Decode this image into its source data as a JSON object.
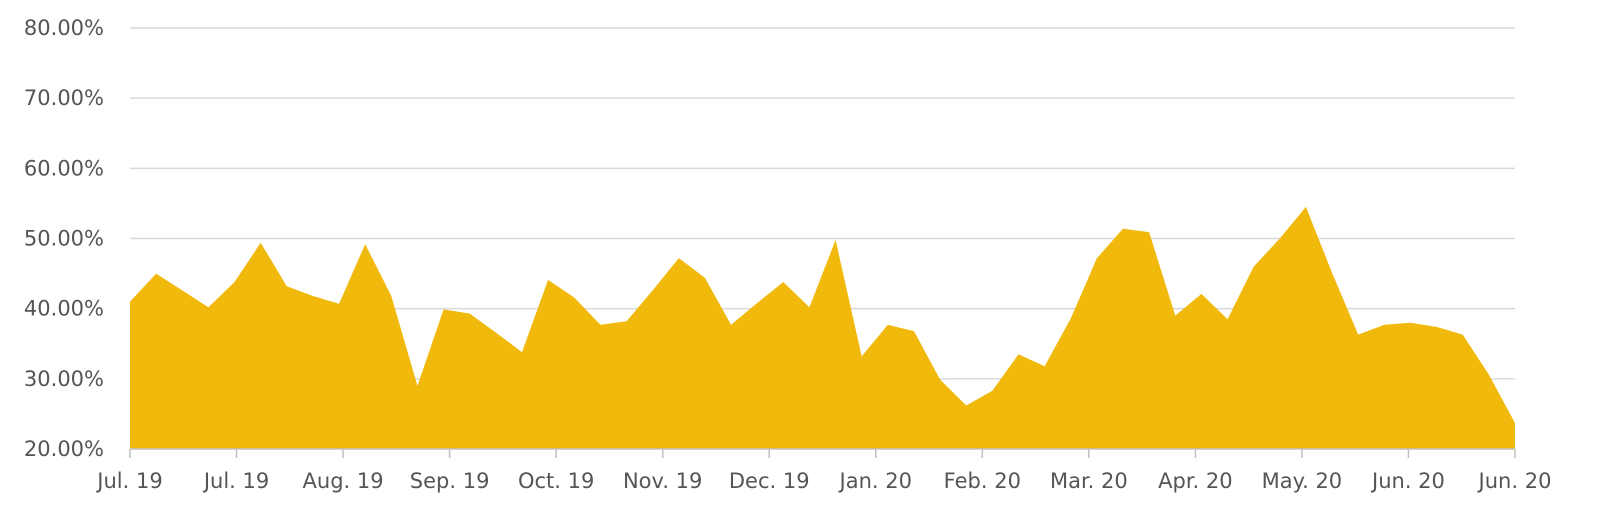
{
  "chart_data": {
    "type": "area",
    "title": "",
    "xlabel": "",
    "ylabel": "",
    "color": "#F0B90B",
    "grid": true,
    "ylim": [
      20,
      80
    ],
    "y_ticks": [
      20,
      30,
      40,
      50,
      60,
      70,
      80
    ],
    "y_tick_labels": [
      "20.00%",
      "30.00%",
      "40.00%",
      "50.00%",
      "60.00%",
      "70.00%",
      "80.00%"
    ],
    "x_tick_labels": [
      "Jul. 19",
      "Jul. 19",
      "Aug. 19",
      "Sep. 19",
      "Oct. 19",
      "Nov. 19",
      "Dec. 19",
      "Jan. 20",
      "Feb. 20",
      "Mar. 20",
      "Apr. 20",
      "May. 20",
      "Jun. 20",
      "Jun. 20"
    ],
    "values": [
      41.0,
      45.0,
      42.6,
      40.2,
      43.8,
      49.4,
      43.2,
      41.8,
      40.7,
      49.2,
      41.8,
      29.0,
      39.9,
      39.3,
      36.6,
      33.8,
      44.1,
      41.6,
      37.7,
      38.2,
      42.6,
      47.2,
      44.4,
      37.7,
      40.8,
      43.8,
      40.2,
      49.8,
      33.2,
      37.7,
      36.8,
      29.9,
      26.2,
      28.3,
      33.5,
      31.8,
      38.6,
      47.2,
      51.4,
      50.9,
      39.0,
      42.1,
      38.5,
      46.0,
      50.0,
      54.5,
      45.1,
      36.3,
      37.7,
      38.0,
      37.4,
      36.3,
      30.6,
      23.7
    ]
  }
}
